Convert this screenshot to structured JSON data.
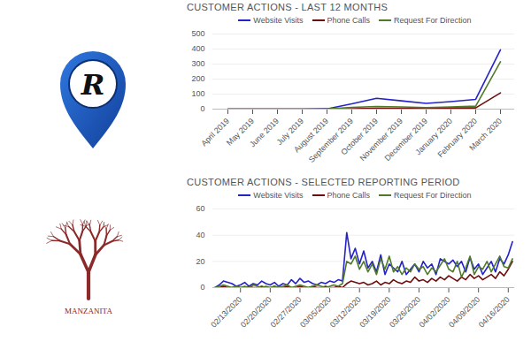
{
  "chart_data": [
    {
      "type": "line",
      "title": "CUSTOMER ACTIONS - LAST 12 MONTHS",
      "categories": [
        "April 2019",
        "May 2019",
        "June 2019",
        "July 2019",
        "August 2019",
        "September 2019",
        "October 2019",
        "November 2019",
        "December 2019",
        "January 2020",
        "February 2020",
        "March 2020"
      ],
      "series": [
        {
          "name": "Website Visits",
          "color": "#2323c8",
          "values": [
            0,
            0,
            0,
            0,
            2,
            35,
            72,
            55,
            38,
            50,
            65,
            395
          ]
        },
        {
          "name": "Phone Calls",
          "color": "#6e0d0d",
          "values": [
            0,
            0,
            0,
            0,
            0,
            3,
            5,
            5,
            5,
            8,
            8,
            108
          ]
        },
        {
          "name": "Request For Direction",
          "color": "#4f7a28",
          "values": [
            0,
            0,
            0,
            0,
            1,
            12,
            18,
            15,
            10,
            15,
            20,
            315
          ]
        }
      ],
      "ylim": [
        0,
        500
      ],
      "yticks": [
        0,
        100,
        200,
        300,
        400,
        500
      ],
      "grid": true,
      "legend": "top"
    },
    {
      "type": "line",
      "title": "CUSTOMER ACTIONS - SELECTED REPORTING PERIOD",
      "categories": [
        null,
        null,
        null,
        null,
        null,
        null,
        "02/13/2020",
        null,
        null,
        null,
        null,
        null,
        null,
        "02/20/2020",
        null,
        null,
        null,
        null,
        null,
        null,
        "02/27/2020",
        null,
        null,
        null,
        null,
        null,
        null,
        "03/05/2020",
        null,
        null,
        null,
        null,
        null,
        null,
        "03/12/2020",
        null,
        null,
        null,
        null,
        null,
        null,
        "03/19/2020",
        null,
        null,
        null,
        null,
        null,
        null,
        "03/26/2020",
        null,
        null,
        null,
        null,
        null,
        null,
        "04/02/2020",
        null,
        null,
        null,
        null,
        null,
        null,
        "04/09/2020",
        null,
        null,
        null,
        null,
        null,
        null,
        "04/16/2020",
        null
      ],
      "series": [
        {
          "name": "Website Visits",
          "color": "#2323c8",
          "values": [
            0,
            2,
            5,
            4,
            3,
            1,
            2,
            4,
            1,
            3,
            2,
            5,
            3,
            2,
            4,
            1,
            3,
            2,
            6,
            3,
            7,
            4,
            5,
            3,
            2,
            4,
            3,
            5,
            4,
            6,
            5,
            42,
            22,
            30,
            18,
            28,
            15,
            20,
            12,
            25,
            10,
            18,
            15,
            12,
            20,
            10,
            14,
            18,
            12,
            20,
            15,
            18,
            10,
            22,
            20,
            18,
            21,
            16,
            20,
            12,
            23,
            14,
            18,
            10,
            15,
            20,
            12,
            22,
            18,
            25,
            35
          ]
        },
        {
          "name": "Phone Calls",
          "color": "#6e0d0d",
          "values": [
            0,
            0,
            1,
            0,
            0,
            1,
            0,
            0,
            1,
            0,
            0,
            1,
            0,
            0,
            1,
            0,
            0,
            1,
            0,
            0,
            1,
            0,
            0,
            1,
            0,
            0,
            1,
            0,
            0,
            1,
            0,
            3,
            5,
            4,
            3,
            4,
            2,
            3,
            5,
            2,
            4,
            3,
            6,
            4,
            3,
            5,
            4,
            8,
            5,
            6,
            4,
            7,
            5,
            8,
            6,
            9,
            7,
            5,
            8,
            6,
            10,
            7,
            9,
            6,
            8,
            10,
            7,
            12,
            9,
            14,
            20
          ]
        },
        {
          "name": "Request For Direction",
          "color": "#4f7a28",
          "values": [
            0,
            1,
            2,
            1,
            0,
            1,
            0,
            1,
            0,
            2,
            1,
            0,
            1,
            0,
            1,
            0,
            1,
            2,
            0,
            1,
            2,
            1,
            0,
            1,
            2,
            1,
            0,
            1,
            2,
            1,
            3,
            20,
            18,
            24,
            14,
            20,
            12,
            18,
            10,
            22,
            14,
            24,
            12,
            16,
            10,
            15,
            12,
            18,
            14,
            16,
            10,
            15,
            12,
            17,
            22,
            14,
            12,
            20,
            8,
            15,
            24,
            10,
            16,
            14,
            20,
            12,
            18,
            24,
            16,
            15,
            22
          ]
        }
      ],
      "ylim": [
        0,
        60
      ],
      "yticks": [
        0,
        20,
        40,
        60
      ],
      "grid": true,
      "legend": "top"
    }
  ],
  "logos": {
    "pin_letter": "R",
    "brand": "MANZANITA"
  }
}
